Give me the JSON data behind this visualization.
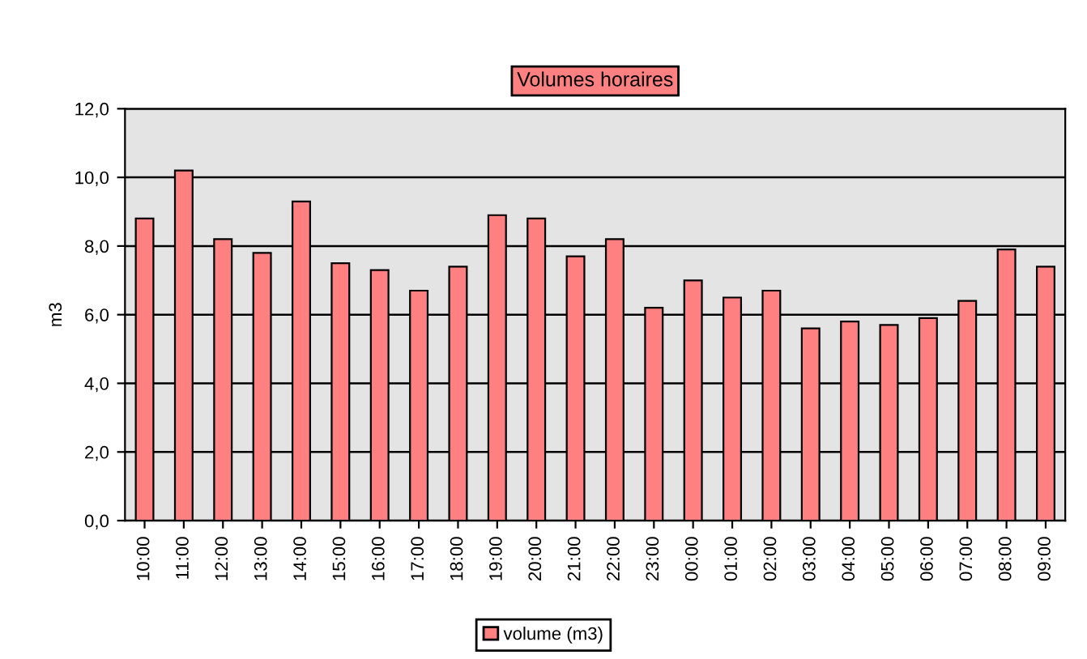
{
  "chart_data": {
    "type": "bar",
    "title": "Volumes horaires",
    "ylabel": "m3",
    "categories": [
      "10:00",
      "11:00",
      "12:00",
      "13:00",
      "14:00",
      "15:00",
      "16:00",
      "17:00",
      "18:00",
      "19:00",
      "20:00",
      "21:00",
      "22:00",
      "23:00",
      "00:00",
      "01:00",
      "02:00",
      "03:00",
      "04:00",
      "05:00",
      "06:00",
      "07:00",
      "08:00",
      "09:00"
    ],
    "series": [
      {
        "name": "volume (m3)",
        "color": "#ff8080",
        "values": [
          8.8,
          10.2,
          8.2,
          7.8,
          9.3,
          7.5,
          7.3,
          6.7,
          7.4,
          8.9,
          8.8,
          7.7,
          8.2,
          6.2,
          7.0,
          6.5,
          6.7,
          5.6,
          5.8,
          5.7,
          5.9,
          6.4,
          7.9,
          7.4
        ]
      }
    ],
    "ylim": [
      0,
      12
    ],
    "yticks": [
      {
        "value": 0,
        "label": "0,0"
      },
      {
        "value": 2,
        "label": "2,0"
      },
      {
        "value": 4,
        "label": "4,0"
      },
      {
        "value": 6,
        "label": "6,0"
      },
      {
        "value": 8,
        "label": "8,0"
      },
      {
        "value": 10,
        "label": "10,0"
      },
      {
        "value": 12,
        "label": "12,0"
      }
    ],
    "grid": "y",
    "legend": "bottom"
  }
}
